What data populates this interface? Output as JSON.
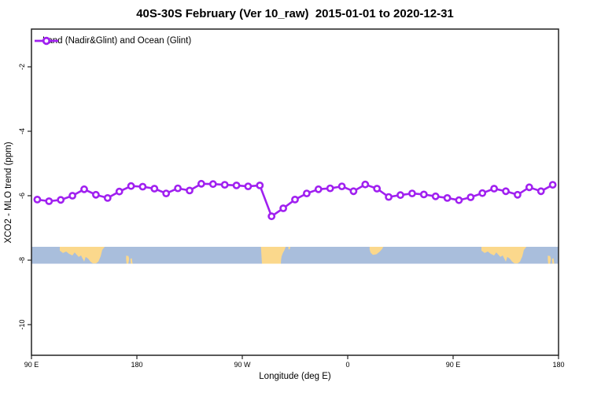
{
  "chart_data": {
    "type": "line",
    "title": "40S-30S February (Ver 10_raw)  2015-01-01 to 2020-12-31",
    "xlabel": "Longitude (deg E)",
    "ylabel": "XCO2 - MLO trend (ppm)",
    "grid": "off",
    "x_axis": {
      "range": [
        90,
        540
      ],
      "wrap_note": "longitude axis wraps eastward past 180",
      "ticks": [
        {
          "lon": 90,
          "label": "90 E"
        },
        {
          "lon": 180,
          "label": "180"
        },
        {
          "lon": 270,
          "label": "90 W"
        },
        {
          "lon": 360,
          "label": "0"
        },
        {
          "lon": 450,
          "label": "90 E"
        },
        {
          "lon": 540,
          "label": "180"
        }
      ]
    },
    "y_axis": {
      "range": [
        -11.0,
        -0.9
      ],
      "ticks": [
        {
          "value": -2,
          "label": "-2"
        },
        {
          "value": -4,
          "label": "-4"
        },
        {
          "value": -6,
          "label": "-6"
        },
        {
          "value": -8,
          "label": "-8"
        },
        {
          "value": -10,
          "label": "-10"
        }
      ]
    },
    "legend": {
      "label": "Land (Nadir&Glint) and Ocean (Glint)",
      "position": "topleft",
      "marker": "open-circle-on-line"
    },
    "series": [
      {
        "name": "Land (Nadir&Glint) and Ocean (Glint)",
        "color": "#A020F0",
        "marker": "open-circle",
        "marker_fill": "#FFFFFF",
        "x": [
          95,
          105,
          115,
          125,
          135,
          145,
          155,
          165,
          175,
          185,
          195,
          205,
          215,
          225,
          235,
          245,
          255,
          265,
          275,
          285,
          295,
          305,
          315,
          325,
          335,
          345,
          355,
          365,
          375,
          385,
          395,
          405,
          415,
          425,
          435,
          445,
          455,
          465,
          475,
          485,
          495,
          505,
          515,
          525,
          535
        ],
        "values": [
          -6.12,
          -6.17,
          -6.13,
          -6.0,
          -5.8,
          -5.97,
          -6.07,
          -5.87,
          -5.7,
          -5.72,
          -5.78,
          -5.93,
          -5.77,
          -5.84,
          -5.63,
          -5.64,
          -5.66,
          -5.68,
          -5.71,
          -5.68,
          -6.64,
          -6.39,
          -6.12,
          -5.93,
          -5.8,
          -5.77,
          -5.71,
          -5.86,
          -5.65,
          -5.78,
          -6.04,
          -5.98,
          -5.93,
          -5.96,
          -6.02,
          -6.07,
          -6.14,
          -6.05,
          -5.92,
          -5.78,
          -5.86,
          -5.97,
          -5.74,
          -5.86,
          -5.66
        ]
      }
    ],
    "map_strip": {
      "description": "coastline band for latitudes 40S-30S (top=30S, bottom=40S)",
      "y_top": -7.585,
      "y_bottom": -8.11,
      "ocean_color": "#A9BEDC",
      "land_color": "#FBD88C",
      "land_polygons": [
        {
          "name": "australia",
          "offsets": [
            0,
            360
          ],
          "points": [
            [
              114.2,
              0
            ],
            [
              152.5,
              0
            ],
            [
              150.4,
              0.19
            ],
            [
              149.1,
              0.56
            ],
            [
              147.1,
              0.88
            ],
            [
              145.1,
              0.98
            ],
            [
              142.4,
              0.98
            ],
            [
              140.4,
              0.88
            ],
            [
              138.4,
              0.7
            ],
            [
              136.3,
              0.6
            ],
            [
              135.0,
              0.88
            ],
            [
              133.7,
              0.7
            ],
            [
              132.3,
              0.51
            ],
            [
              130.3,
              0.6
            ],
            [
              126.9,
              0.33
            ],
            [
              124.9,
              0.51
            ],
            [
              122.2,
              0.42
            ],
            [
              119.6,
              0.28
            ],
            [
              116.9,
              0.37
            ],
            [
              114.2,
              0.23
            ]
          ]
        },
        {
          "name": "new-zealand-west",
          "offsets": [
            0,
            360
          ],
          "points": [
            [
              170.8,
              0.52
            ],
            [
              172.8,
              0.55
            ],
            [
              173.4,
              0.72
            ],
            [
              172.7,
              1.0
            ],
            [
              171.2,
              1.0
            ],
            [
              170.8,
              0.75
            ]
          ]
        },
        {
          "name": "new-zealand-east",
          "offsets": [
            0,
            360
          ],
          "points": [
            [
              174.4,
              0.7
            ],
            [
              175.7,
              0.68
            ],
            [
              176.3,
              1.0
            ],
            [
              174.8,
              1.0
            ]
          ]
        },
        {
          "name": "south-america",
          "offsets": [
            0
          ],
          "points": [
            [
              285.9,
              0
            ],
            [
              307.1,
              0
            ],
            [
              306.0,
              0.2
            ],
            [
              304.5,
              0.38
            ],
            [
              303.5,
              0.58
            ],
            [
              303.1,
              0.78
            ],
            [
              302.9,
              1.0
            ],
            [
              286.8,
              1.0
            ]
          ]
        },
        {
          "name": "south-america-coast-speck",
          "offsets": [
            0
          ],
          "points": [
            [
              309.3,
              0
            ],
            [
              311.0,
              0
            ],
            [
              310.6,
              0.14
            ],
            [
              309.5,
              0.16
            ]
          ]
        },
        {
          "name": "south-africa",
          "offsets": [
            0
          ],
          "points": [
            [
              378.7,
              0
            ],
            [
              390.3,
              0
            ],
            [
              389.5,
              0.12
            ],
            [
              387.5,
              0.28
            ],
            [
              384.5,
              0.44
            ],
            [
              381.5,
              0.48
            ],
            [
              379.5,
              0.34
            ],
            [
              378.7,
              0.15
            ]
          ]
        }
      ]
    }
  }
}
